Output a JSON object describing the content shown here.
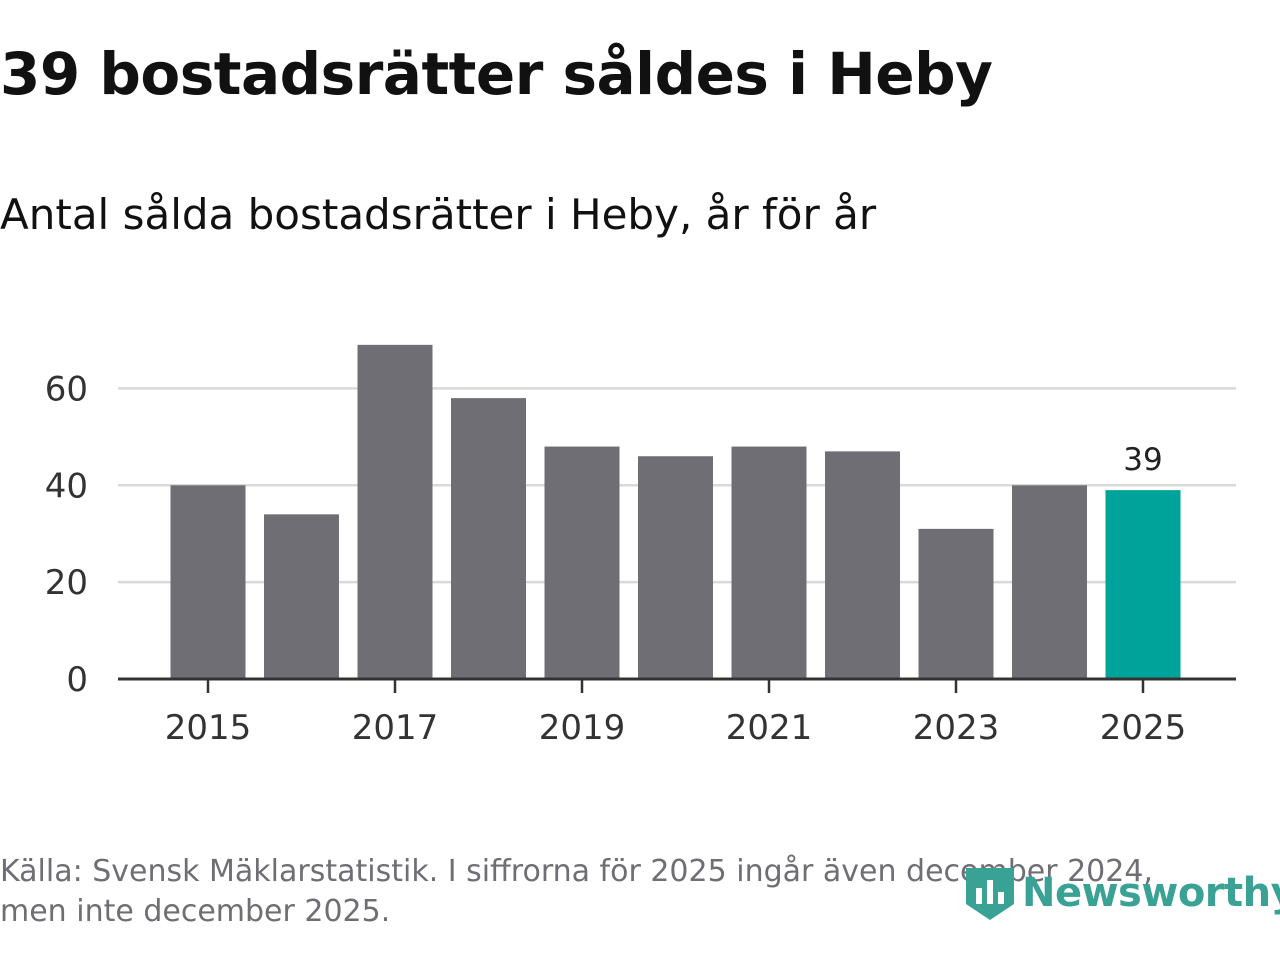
{
  "header": {
    "title": "39 bostadsrätter såldes i Heby",
    "subtitle": "Antal sålda bostadsrätter i Heby, år för år"
  },
  "footer": {
    "source_line1": "Källa: Svensk Mäklarstatistik. I siffrorna för 2025 ingår även december 2024,",
    "source_line2": "men inte december 2025.",
    "logo_text": "Newsworthy"
  },
  "colors": {
    "bar": "#6f6e74",
    "highlight": "#00a39a",
    "grid": "#d9d9d9",
    "axis": "#333333",
    "logo": "#3aa295"
  },
  "chart_data": {
    "type": "bar",
    "title": "Antal sålda bostadsrätter i Heby, år för år",
    "xlabel": "",
    "ylabel": "",
    "categories": [
      "2015",
      "2016",
      "2017",
      "2018",
      "2019",
      "2020",
      "2021",
      "2022",
      "2023",
      "2024",
      "2025"
    ],
    "values": [
      40,
      34,
      69,
      58,
      48,
      46,
      48,
      47,
      31,
      40,
      39
    ],
    "highlight_index": 10,
    "data_labels": [
      {
        "category": "2025",
        "label": "39"
      }
    ],
    "x_tick_labels": [
      "2015",
      "2017",
      "2019",
      "2021",
      "2023",
      "2025"
    ],
    "y_ticks": [
      0,
      20,
      40,
      60
    ],
    "y_tick_labels": [
      "0",
      "20",
      "40",
      "60"
    ],
    "ylim": [
      0,
      70
    ],
    "grid": true,
    "legend": "none"
  }
}
